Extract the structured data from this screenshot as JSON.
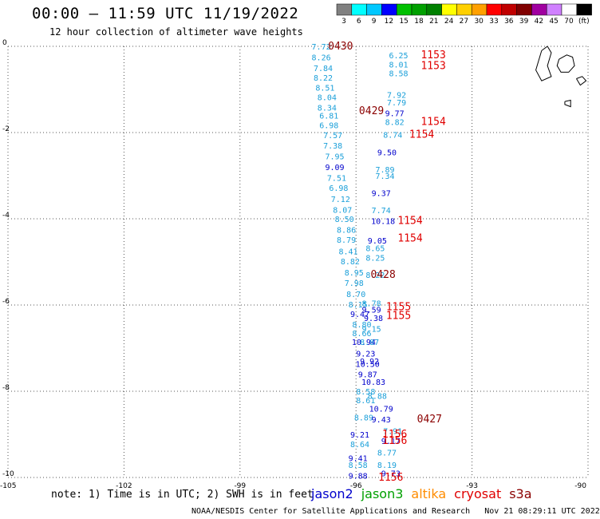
{
  "header": {
    "title": "00:00 – 11:59 UTC 11/19/2022",
    "subtitle": "12 hour collection of altimeter wave heights"
  },
  "colorbar": {
    "labels": [
      "3",
      "6",
      "9",
      "12",
      "15",
      "18",
      "21",
      "24",
      "27",
      "30",
      "33",
      "36",
      "39",
      "42",
      "45",
      "70",
      "(ft)"
    ],
    "colors": [
      "#808080",
      "#00ffff",
      "#00c8ff",
      "#0000ff",
      "#00c000",
      "#00a000",
      "#008000",
      "#ffff00",
      "#ffd000",
      "#ffa000",
      "#ff0000",
      "#c00000",
      "#800000",
      "#a000a0",
      "#d080ff",
      "#ffffff",
      "#000000"
    ]
  },
  "footnote": "note: 1) Time is in UTC; 2) SWH is in feet",
  "legend": [
    {
      "name": "jason2",
      "color": "#0000cc"
    },
    {
      "name": "jason3",
      "color": "#00a000"
    },
    {
      "name": "altika",
      "color": "#ff8c00"
    },
    {
      "name": "cryosat",
      "color": "#e00000"
    },
    {
      "name": "s3a",
      "color": "#8b0000"
    }
  ],
  "credit": "NOAA/NESDIS Center for Satellite Applications and Research   Nov 21 08:29:11 UTC 2022",
  "chart_data": {
    "type": "scatter",
    "title": "00:00 – 11:59 UTC 11/19/2022",
    "xlabel": "",
    "ylabel": "",
    "xlim": [
      -105,
      -90
    ],
    "ylim": [
      -10,
      0
    ],
    "x_ticks": [
      -105,
      -102,
      -99,
      -96,
      -93,
      -90
    ],
    "y_ticks": [
      0,
      -2,
      -4,
      -6,
      -8,
      -10
    ],
    "grid": true,
    "series": [
      {
        "name": "track_a",
        "color": "#1a9fd9",
        "points": [
          [
            -96.9,
            0.0,
            "7.72"
          ],
          [
            -96.9,
            -0.25,
            "8.26"
          ],
          [
            -96.85,
            -0.5,
            "7.84"
          ],
          [
            -96.85,
            -0.72,
            "8.22"
          ],
          [
            -96.8,
            -0.95,
            "8.51"
          ],
          [
            -96.75,
            -1.18,
            "8.04"
          ],
          [
            -96.75,
            -1.42,
            "8.34"
          ],
          [
            -96.7,
            -1.6,
            "6.81"
          ],
          [
            -96.7,
            -1.82,
            "6.98"
          ],
          [
            -96.6,
            -2.06,
            "7.57"
          ],
          [
            -96.6,
            -2.3,
            "7.38"
          ],
          [
            -96.55,
            -2.55,
            "7.95"
          ],
          [
            -96.55,
            -2.8,
            "9.09",
            "#0000cc"
          ],
          [
            -96.5,
            -3.05,
            "7.51"
          ],
          [
            -96.45,
            -3.28,
            "6.98"
          ],
          [
            -96.4,
            -3.54,
            "7.12"
          ],
          [
            -96.35,
            -3.79,
            "8.07"
          ],
          [
            -96.3,
            -4.0,
            "8.50"
          ],
          [
            -96.25,
            -4.25,
            "8.86"
          ],
          [
            -96.25,
            -4.48,
            "8.79"
          ],
          [
            -96.2,
            -4.75,
            "8.41"
          ],
          [
            -96.15,
            -4.98,
            "8.82"
          ],
          [
            -96.05,
            -5.24,
            "8.95"
          ],
          [
            -96.05,
            -5.48,
            "7.98"
          ],
          [
            -96.0,
            -5.74,
            "8.70"
          ],
          [
            -95.95,
            -5.98,
            "8.15"
          ],
          [
            -95.9,
            -6.2,
            "9.47",
            "#0000cc"
          ],
          [
            -95.85,
            -6.44,
            "8.80"
          ],
          [
            -95.85,
            -6.65,
            "8.66"
          ],
          [
            -95.8,
            -6.85,
            "10.94",
            "#0000cc"
          ],
          [
            -95.75,
            -7.12,
            "9.23",
            "#0000cc"
          ],
          [
            -95.7,
            -7.36,
            "10.50",
            "#0000cc"
          ],
          [
            -95.7,
            -7.6,
            "9.87",
            "#0000cc"
          ],
          [
            -95.75,
            -8.0,
            "8.58"
          ],
          [
            -95.75,
            -8.2,
            "8.61"
          ],
          [
            -95.8,
            -8.6,
            "8.89"
          ],
          [
            -95.9,
            -9.0,
            "9.21",
            "#0000cc"
          ],
          [
            -95.9,
            -9.22,
            "8.64"
          ],
          [
            -95.95,
            -9.55,
            "9.41",
            "#0000cc"
          ],
          [
            -95.95,
            -9.7,
            "8.58"
          ],
          [
            -95.95,
            -9.95,
            "9.88",
            "#0000cc"
          ]
        ]
      },
      {
        "name": "track_b",
        "color": "#1a9fd9",
        "points": [
          [
            -94.9,
            -0.2,
            "6.25"
          ],
          [
            -94.9,
            -0.42,
            "8.01"
          ],
          [
            -94.9,
            -0.62,
            "8.58"
          ],
          [
            -94.95,
            -1.12,
            "7.92"
          ],
          [
            -94.95,
            -1.3,
            "7.79"
          ],
          [
            -95.0,
            -1.55,
            "9.77",
            "#0000cc"
          ],
          [
            -95.0,
            -1.75,
            "8.82"
          ],
          [
            -95.05,
            -2.05,
            "8.74"
          ],
          [
            -95.2,
            -2.45,
            "9.50",
            "#0000cc"
          ],
          [
            -95.25,
            -2.85,
            "7.89"
          ],
          [
            -95.25,
            -3.0,
            "7.34"
          ],
          [
            -95.35,
            -3.4,
            "9.37",
            "#0000cc"
          ],
          [
            -95.35,
            -3.8,
            "7.74"
          ],
          [
            -95.3,
            -4.05,
            "10.18",
            "#0000cc"
          ],
          [
            -95.45,
            -4.5,
            "9.05",
            "#0000cc"
          ],
          [
            -95.5,
            -4.68,
            "8.65"
          ],
          [
            -95.5,
            -4.9,
            "8.25"
          ],
          [
            -95.5,
            -5.3,
            "8.22"
          ],
          [
            -95.6,
            -5.95,
            "8.78"
          ],
          [
            -95.6,
            -6.1,
            "9.59",
            "#0000cc"
          ],
          [
            -95.55,
            -6.3,
            "9.38",
            "#0000cc"
          ],
          [
            -95.6,
            -6.55,
            "9.15"
          ],
          [
            -95.65,
            -6.85,
            "8.87"
          ],
          [
            -95.65,
            -7.3,
            "9.92",
            "#0000cc"
          ],
          [
            -95.55,
            -7.78,
            "10.83",
            "#0000cc"
          ],
          [
            -95.45,
            -8.1,
            "8.88"
          ],
          [
            -95.35,
            -8.4,
            "10.79",
            "#0000cc"
          ],
          [
            -95.35,
            -8.65,
            "9.43",
            "#0000cc"
          ],
          [
            -95.05,
            -8.92,
            "7.91"
          ],
          [
            -95.1,
            -9.15,
            "9.17",
            "#0000cc"
          ],
          [
            -95.2,
            -9.42,
            "8.77"
          ],
          [
            -95.2,
            -9.7,
            "8.19"
          ],
          [
            -95.1,
            -9.9,
            "9.73",
            "#0000cc"
          ]
        ]
      },
      {
        "name": "time_labels",
        "color": "#8b0000",
        "points": [
          [
            -96.4,
            0.0,
            "0430",
            "#8b0000"
          ],
          [
            -95.6,
            -1.5,
            "0429",
            "#8b0000"
          ],
          [
            -95.3,
            -5.3,
            "0428",
            "#8b0000"
          ],
          [
            -94.1,
            -8.65,
            "0427",
            "#8b0000"
          ],
          [
            -94.0,
            -0.2,
            "1153",
            "#e00000"
          ],
          [
            -94.0,
            -0.45,
            "1153",
            "#e00000"
          ],
          [
            -94.0,
            -1.75,
            "1154",
            "#e00000"
          ],
          [
            -94.3,
            -2.05,
            "1154",
            "#e00000"
          ],
          [
            -94.6,
            -4.05,
            "1154",
            "#e00000"
          ],
          [
            -94.6,
            -4.45,
            "1154",
            "#e00000"
          ],
          [
            -94.9,
            -6.05,
            "1155",
            "#e00000"
          ],
          [
            -94.9,
            -6.25,
            "1155",
            "#e00000"
          ],
          [
            -95.0,
            -9.0,
            "1156",
            "#e00000"
          ],
          [
            -95.0,
            -9.15,
            "1156",
            "#e00000"
          ],
          [
            -95.1,
            -10.0,
            "1156",
            "#e00000"
          ]
        ]
      }
    ]
  }
}
